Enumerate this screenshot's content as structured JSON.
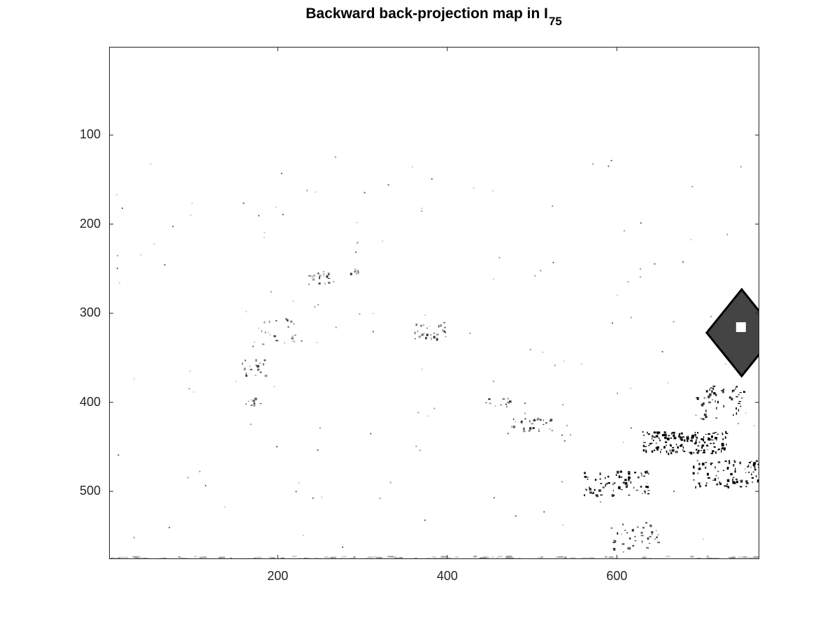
{
  "figure": {
    "title_main": "Backward back-projection map  in I",
    "title_sub": "75"
  },
  "axes": {
    "xlim": [
      1,
      768
    ],
    "ylim": [
      1,
      576
    ],
    "y_direction": "reversed",
    "grid": false,
    "x_ticks": [
      {
        "value": 200,
        "label": "200"
      },
      {
        "value": 400,
        "label": "400"
      },
      {
        "value": 600,
        "label": "600"
      }
    ],
    "y_ticks": [
      {
        "value": 100,
        "label": "100"
      },
      {
        "value": 200,
        "label": "200"
      },
      {
        "value": 300,
        "label": "300"
      },
      {
        "value": 400,
        "label": "400"
      },
      {
        "value": 500,
        "label": "500"
      }
    ]
  },
  "image": {
    "colormap": "grayscale",
    "background": "#ffffff",
    "description_colors": [
      "#000000",
      "#333333",
      "#666666",
      "#999999",
      "#cccccc"
    ]
  }
}
